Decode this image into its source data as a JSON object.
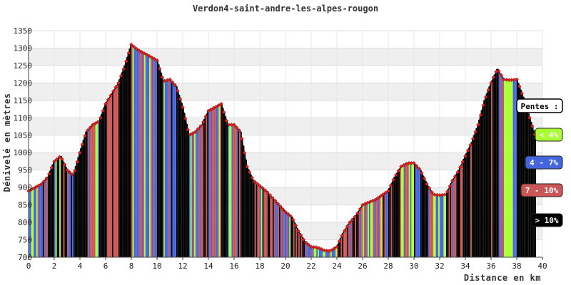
{
  "chart_data": {
    "type": "area",
    "title": "Verdon4-saint-andre-les-alpes-rougon",
    "xlabel": "Distance en km",
    "ylabel": "Dénivelé en mètres",
    "xlim": [
      0,
      40
    ],
    "ylim": [
      700,
      1350
    ],
    "xticks": [
      0,
      2,
      4,
      6,
      8,
      10,
      12,
      14,
      16,
      18,
      20,
      22,
      24,
      26,
      28,
      30,
      32,
      34,
      36,
      38,
      40
    ],
    "yticks": [
      700,
      750,
      800,
      850,
      900,
      950,
      1000,
      1050,
      1100,
      1150,
      1200,
      1250,
      1300,
      1350
    ],
    "grid": true,
    "legend_position": "right",
    "legend_title": "Pentes :",
    "legend": [
      {
        "label": "< 4%",
        "color": "#aaff33",
        "text_color": "#ffffff"
      },
      {
        "label": "4 - 7%",
        "color": "#4466dd",
        "text_color": "#ffffff"
      },
      {
        "label": "7 - 10%",
        "color": "#cc5555",
        "text_color": "#ffffff"
      },
      {
        "label": "> 10%",
        "color": "#000000",
        "text_color": "#ffffff"
      }
    ],
    "series": [
      {
        "x": [
          0,
          0.5,
          1,
          1.5,
          2,
          2.5,
          3,
          3.5,
          4,
          4.5,
          5,
          5.5,
          6,
          6.5,
          7,
          7.5,
          8,
          8.5,
          9,
          9.5,
          10,
          10.5,
          11,
          11.5,
          12,
          12.5,
          13,
          13.5,
          14,
          14.5,
          15,
          15.5,
          16,
          16.5,
          17,
          17.5,
          18,
          18.5,
          19,
          19.5,
          20,
          20.5,
          21,
          21.5,
          22,
          22.5,
          23,
          23.5,
          24,
          24.5,
          25,
          25.5,
          26,
          26.5,
          27,
          27.5,
          28,
          28.5,
          29,
          29.5,
          30,
          30.5,
          31,
          31.5,
          32,
          32.5,
          33,
          33.5,
          34,
          34.5,
          35,
          35.5,
          36,
          36.5,
          37,
          37.5,
          38,
          38.5,
          39,
          39.5
        ],
        "y": [
          890,
          900,
          910,
          930,
          975,
          990,
          950,
          935,
          1000,
          1060,
          1080,
          1090,
          1140,
          1170,
          1200,
          1250,
          1310,
          1295,
          1285,
          1275,
          1265,
          1205,
          1210,
          1190,
          1130,
          1050,
          1060,
          1080,
          1120,
          1130,
          1140,
          1080,
          1080,
          1060,
          960,
          920,
          905,
          890,
          870,
          850,
          830,
          815,
          775,
          745,
          730,
          728,
          720,
          718,
          730,
          770,
          800,
          820,
          850,
          858,
          865,
          878,
          890,
          930,
          960,
          970,
          970,
          950,
          910,
          880,
          878,
          880,
          920,
          950,
          990,
          1030,
          1080,
          1150,
          1200,
          1240,
          1210,
          1208,
          1210,
          1160,
          1100,
          1040
        ]
      }
    ]
  }
}
